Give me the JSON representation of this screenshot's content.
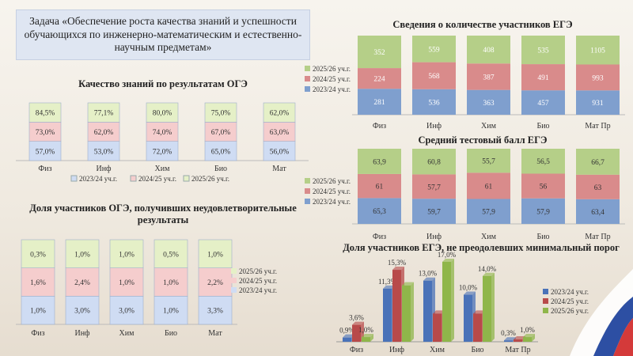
{
  "task_text": "Задача «Обеспечение роста качества знаний и успешности обучающихся по инженерно-математическим и естественно-научным предметам»",
  "chart_data": [
    {
      "id": "oge_quality",
      "type": "bar",
      "stacked": true,
      "title": "Качество знаний по результатам ОГЭ",
      "categories": [
        "Физ",
        "Инф",
        "Хим",
        "Био",
        "Мат"
      ],
      "series": [
        {
          "name": "2023/24 уч.г.",
          "values": [
            57.0,
            53.0,
            72.0,
            65.0,
            56.0
          ],
          "labels": [
            "57,0%",
            "53,0%",
            "72,0%",
            "65,0%",
            "56,0%"
          ],
          "color": "#cfdcf3"
        },
        {
          "name": "2024/25 уч.г.",
          "values": [
            73.0,
            62.0,
            74.0,
            67.0,
            63.0
          ],
          "labels": [
            "73,0%",
            "62,0%",
            "74,0%",
            "67,0%",
            "63,0%"
          ],
          "color": "#f5cdcd"
        },
        {
          "name": "2025/26 уч.г.",
          "values": [
            84.5,
            77.1,
            80.0,
            75.0,
            62.0
          ],
          "labels": [
            "84,5%",
            "77,1%",
            "80,0%",
            "75,0%",
            "62,0%"
          ],
          "color": "#e5f0c7"
        }
      ],
      "legend": "bottom"
    },
    {
      "id": "oge_unsat",
      "type": "bar",
      "stacked": true,
      "title": "Доля участников ОГЭ, получивших неудовлетворительные  результаты",
      "categories": [
        "Физ",
        "Инф",
        "Хим",
        "Био",
        "Мат"
      ],
      "series": [
        {
          "name": "2023/24 уч.г.",
          "values": [
            1.0,
            3.0,
            3.0,
            1.0,
            3.3
          ],
          "labels": [
            "1,0%",
            "3,0%",
            "3,0%",
            "1,0%",
            "3,3%"
          ],
          "color": "#cfdcf3"
        },
        {
          "name": "2024/25 уч.г.",
          "values": [
            1.6,
            2.4,
            1.0,
            1.0,
            2.2
          ],
          "labels": [
            "1,6%",
            "2,4%",
            "1,0%",
            "1,0%",
            "2,2%"
          ],
          "color": "#f5cdcd"
        },
        {
          "name": "2025/26 уч.г.",
          "values": [
            0.3,
            1.0,
            1.0,
            0.5,
            1.0
          ],
          "labels": [
            "0,3%",
            "1,0%",
            "1,0%",
            "0,5%",
            "1,0%"
          ],
          "color": "#e5f0c7"
        }
      ],
      "legend": "right"
    },
    {
      "id": "ege_count",
      "type": "bar",
      "stacked": true,
      "normalized": true,
      "title": "Сведения о количестве  участников ЕГЭ",
      "categories": [
        "Физ",
        "Инф",
        "Хим",
        "Био",
        "Мат Пр"
      ],
      "series": [
        {
          "name": "2023/24 уч.г.",
          "values": [
            281,
            536,
            363,
            457,
            931
          ],
          "labels": [
            "281",
            "536",
            "363",
            "457",
            "931"
          ],
          "color": "#7f9fce"
        },
        {
          "name": "2024/25 уч.г.",
          "values": [
            224,
            568,
            387,
            491,
            993
          ],
          "labels": [
            "224",
            "568",
            "387",
            "491",
            "993"
          ],
          "color": "#d98b8b"
        },
        {
          "name": "2025/26 уч.г.",
          "values": [
            352,
            559,
            408,
            535,
            1105
          ],
          "labels": [
            "352",
            "559",
            "408",
            "535",
            "1105"
          ],
          "color": "#b5cf88"
        }
      ],
      "legend": "left"
    },
    {
      "id": "ege_score",
      "type": "bar",
      "stacked": true,
      "normalized": true,
      "title": "Средний тестовый балл ЕГЭ",
      "categories": [
        "Физ",
        "Инф",
        "Хим",
        "Био",
        "Мат Пр"
      ],
      "series": [
        {
          "name": "2023/24 уч.г.",
          "values": [
            65.3,
            59.7,
            57.9,
            57.9,
            63.4
          ],
          "labels": [
            "65,3",
            "59,7",
            "57,9",
            "57,9",
            "63,4"
          ],
          "color": "#7f9fce"
        },
        {
          "name": "2024/25 уч.г.",
          "values": [
            61,
            57.7,
            61,
            56,
            63
          ],
          "labels": [
            "61",
            "57,7",
            "61",
            "56",
            "63"
          ],
          "color": "#d98b8b"
        },
        {
          "name": "2025/26 уч.г.",
          "values": [
            63.9,
            60.8,
            55.7,
            56.5,
            66.7
          ],
          "labels": [
            "63,9",
            "60,8",
            "55,7",
            "56,5",
            "66,7"
          ],
          "color": "#b5cf88"
        }
      ],
      "legend": "left"
    },
    {
      "id": "ege_fail",
      "type": "bar",
      "grouped": true,
      "title": "Доля участников ЕГЭ, не преодолевших минимальный порог",
      "categories": [
        "Физ",
        "Инф",
        "Хим",
        "Био",
        "Мат Пр"
      ],
      "ylim": [
        0,
        18
      ],
      "series": [
        {
          "name": "2023/24 уч.г.",
          "values": [
            0.9,
            11.3,
            13.0,
            10.0,
            0.3
          ],
          "labels": [
            "0,9%",
            "11,3%",
            "13,0%",
            "10,0%",
            "0,3%"
          ],
          "color": "#4a72b8"
        },
        {
          "name": "2024/25 уч.г.",
          "values": [
            3.6,
            15.3,
            6.0,
            6.0,
            0.5
          ],
          "labels": [
            "3,6%",
            "15,3%",
            "",
            "",
            ""
          ],
          "color": "#b84a4a"
        },
        {
          "name": "2025/26 уч.г.",
          "values": [
            1.0,
            12.0,
            17.0,
            14.0,
            1.0
          ],
          "labels": [
            "1,0%",
            "",
            "17,0%",
            "14,0%",
            "1,0%"
          ],
          "color": "#8fb64a"
        }
      ],
      "legend": "right"
    }
  ]
}
